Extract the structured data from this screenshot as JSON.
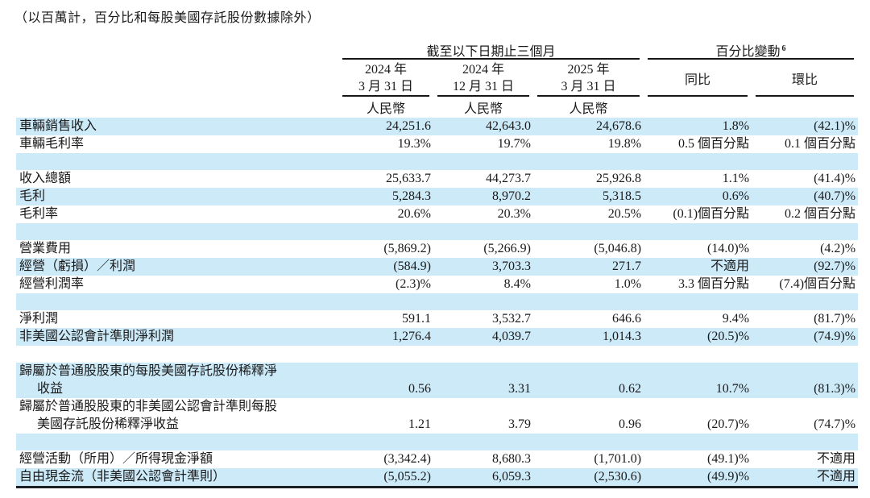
{
  "note": "（以百萬計，百分比和每股美國存託股份數據除外）",
  "table": {
    "group_headers": [
      {
        "label": "截至以下日期止三個月",
        "footnote": ""
      },
      {
        "label": "百分比變動",
        "footnote": "6"
      }
    ],
    "columns": [
      {
        "line1": "2024 年",
        "line2": "3 月 31 日",
        "currency": "人民幣"
      },
      {
        "line1": "2024 年",
        "line2": "12 月 31 日",
        "currency": "人民幣"
      },
      {
        "line1": "2025 年",
        "line2": "3 月 31 日",
        "currency": "人民幣"
      },
      {
        "label": "同比"
      },
      {
        "label": "環比"
      }
    ],
    "rows": [
      {
        "label": "車輛銷售收入",
        "values": [
          "24,251.6",
          "42,643.0",
          "24,678.6",
          "1.8%",
          "(42.1)%"
        ],
        "bg": "blue"
      },
      {
        "label": "車輛毛利率",
        "values": [
          "19.3%",
          "19.7%",
          "19.8%",
          "0.5 個百分點",
          "0.1 個百分點"
        ],
        "bg": "white"
      },
      {
        "spacer": true,
        "bg": "blue"
      },
      {
        "label": "收入總額",
        "values": [
          "25,633.7",
          "44,273.7",
          "25,926.8",
          "1.1%",
          "(41.4)%"
        ],
        "bg": "white"
      },
      {
        "label": "毛利",
        "values": [
          "5,284.3",
          "8,970.2",
          "5,318.5",
          "0.6%",
          "(40.7)%"
        ],
        "bg": "blue"
      },
      {
        "label": "毛利率",
        "values": [
          "20.6%",
          "20.3%",
          "20.5%",
          "(0.1)個百分點",
          "0.2 個百分點"
        ],
        "bg": "white"
      },
      {
        "spacer": true,
        "bg": "blue"
      },
      {
        "label": "營業費用",
        "values": [
          "(5,869.2)",
          "(5,266.9)",
          "(5,046.8)",
          "(14.0)%",
          "(4.2)%"
        ],
        "bg": "white"
      },
      {
        "label": "經營（虧損）／利潤",
        "values": [
          "(584.9)",
          "3,703.3",
          "271.7",
          "不適用",
          "(92.7)%"
        ],
        "bg": "blue"
      },
      {
        "label": "經營利潤率",
        "values": [
          "(2.3)%",
          "8.4%",
          "1.0%",
          "3.3 個百分點",
          "(7.4)個百分點"
        ],
        "bg": "white"
      },
      {
        "spacer": true,
        "bg": "blue"
      },
      {
        "label": "淨利潤",
        "values": [
          "591.1",
          "3,532.7",
          "646.6",
          "9.4%",
          "(81.7)%"
        ],
        "bg": "white"
      },
      {
        "label": "非美國公認會計準則淨利潤",
        "values": [
          "1,276.4",
          "4,039.7",
          "1,014.3",
          "(20.5)%",
          "(74.9)%"
        ],
        "bg": "blue"
      },
      {
        "spacer": true,
        "bg": "white"
      },
      {
        "label": [
          "歸屬於普通股股東的每股美國存託股份稀釋淨",
          "收益"
        ],
        "values": [
          "0.56",
          "3.31",
          "0.62",
          "10.7%",
          "(81.3)%"
        ],
        "bg": "blue"
      },
      {
        "label": [
          "歸屬於普通股股東的非美國公認會計準則每股",
          "美國存託股份稀釋淨收益"
        ],
        "values": [
          "1.21",
          "3.79",
          "0.96",
          "(20.7)%",
          "(74.7)%"
        ],
        "bg": "white"
      },
      {
        "spacer": true,
        "bg": "blue"
      },
      {
        "label": "經營活動（所用）／所得現金淨額",
        "values": [
          "(3,342.4)",
          "8,680.3",
          "(1,701.0)",
          "(49.1)%",
          "不適用"
        ],
        "bg": "white"
      },
      {
        "label": "自由現金流（非美國公認會計準則）",
        "values": [
          "(5,055.2)",
          "6,059.3",
          "(2,530.6)",
          "(49.9)%",
          "不適用"
        ],
        "bg": "blue"
      }
    ]
  }
}
